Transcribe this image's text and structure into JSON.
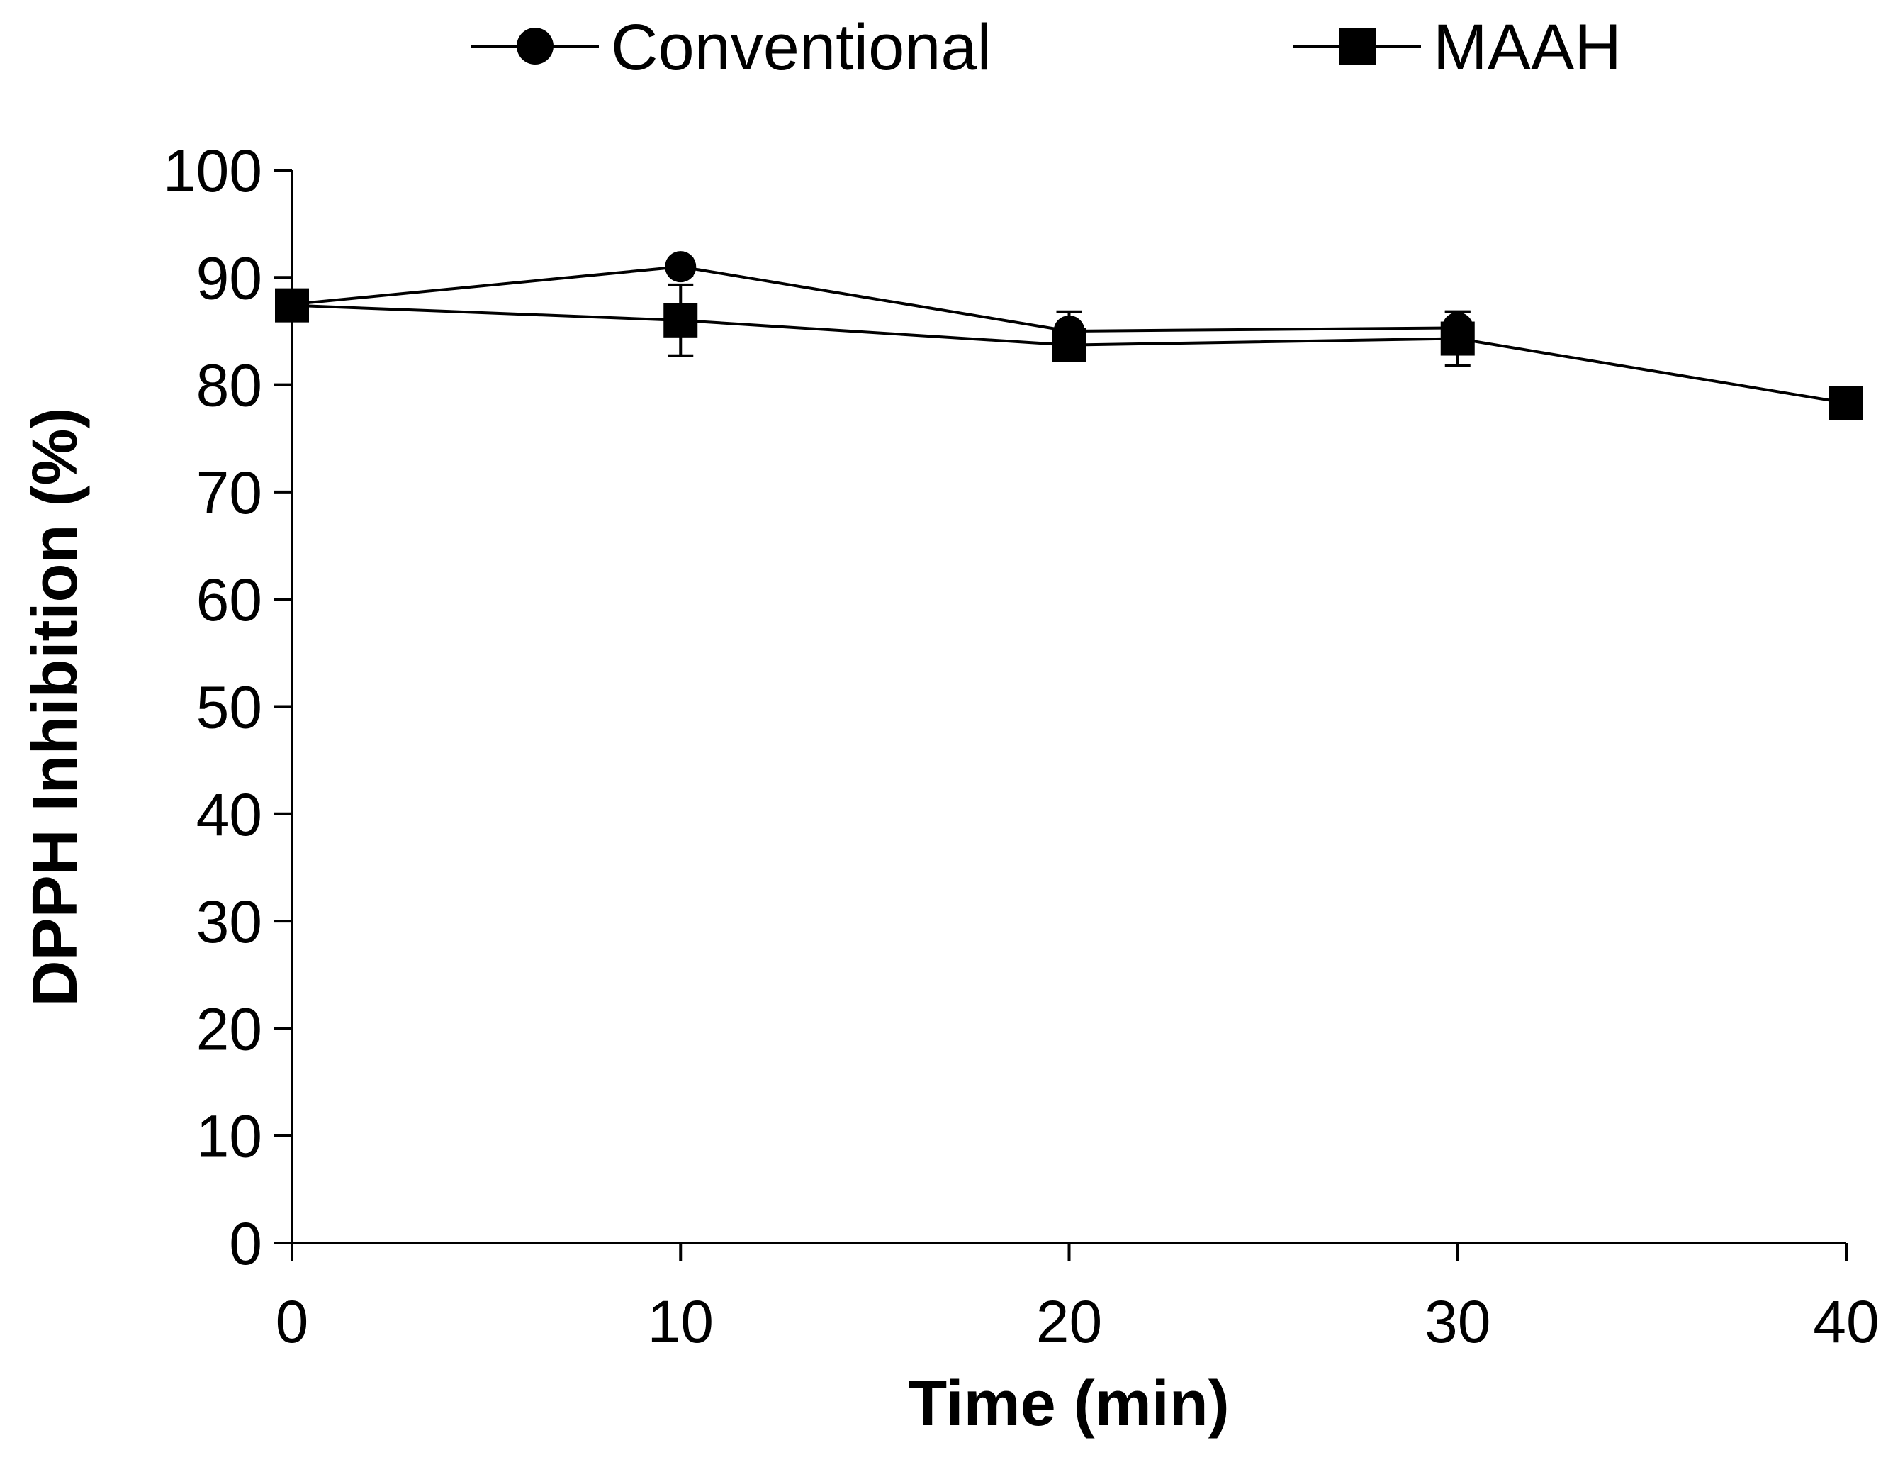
{
  "chart_data": {
    "type": "line",
    "title": "",
    "xlabel": "Time (min)",
    "ylabel": "DPPH Inhibition (%)",
    "xlim": [
      0,
      40
    ],
    "ylim": [
      0,
      100
    ],
    "xticks": [
      0,
      10,
      20,
      30,
      40
    ],
    "yticks": [
      0,
      10,
      20,
      30,
      40,
      50,
      60,
      70,
      80,
      90,
      100
    ],
    "grid": false,
    "legend_position": "top",
    "series": [
      {
        "name": "Conventional",
        "marker": "circle",
        "x": [
          0,
          10,
          20,
          30
        ],
        "y": [
          87.5,
          91.0,
          85.0,
          85.3
        ],
        "err": [
          0.5,
          0.8,
          1.8,
          1.5
        ]
      },
      {
        "name": "MAAH",
        "marker": "square",
        "x": [
          0,
          10,
          20,
          30,
          40
        ],
        "y": [
          87.4,
          86.0,
          83.7,
          84.3,
          78.3
        ],
        "err": [
          0.5,
          3.3,
          0.5,
          2.5,
          0.4
        ]
      }
    ],
    "colors": {
      "line": "#000000",
      "marker": "#000000",
      "background": "#ffffff"
    }
  }
}
